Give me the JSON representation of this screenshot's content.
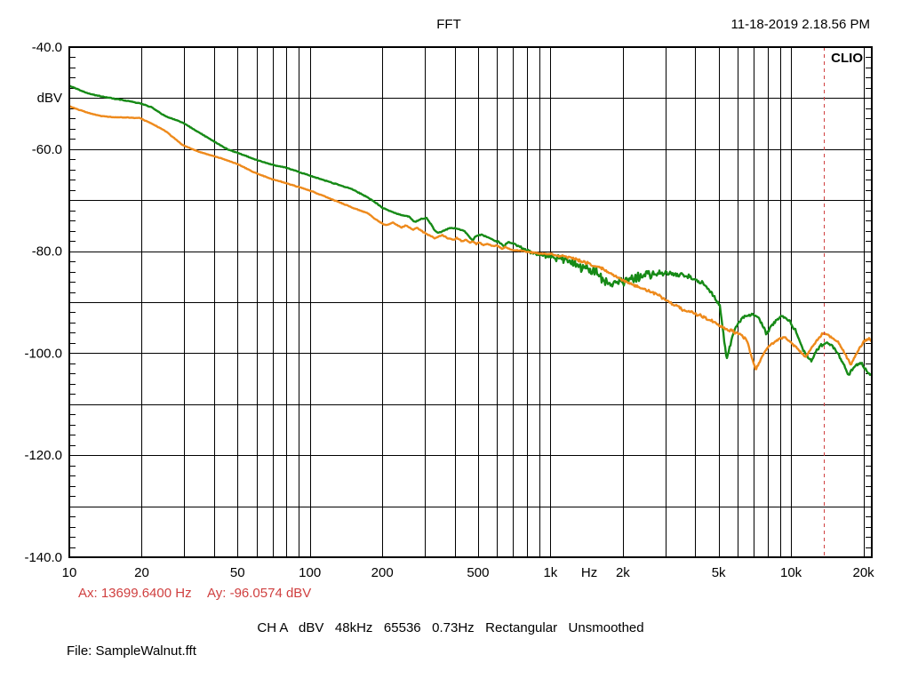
{
  "header": {
    "title": "FFT",
    "datetime": "11-18-2019 2.18.56 PM"
  },
  "brand": "CLIO",
  "axes": {
    "y_unit": "dBV",
    "y_labels": [
      {
        "db": -40,
        "label": "-40.0"
      },
      {
        "db": -60,
        "label": "-60.0"
      },
      {
        "db": -80,
        "label": "-80.0"
      },
      {
        "db": -100,
        "label": "-100.0"
      },
      {
        "db": -120,
        "label": "-120.0"
      },
      {
        "db": -140,
        "label": "-140.0"
      }
    ],
    "x_labels": [
      {
        "f": 10,
        "label": "10"
      },
      {
        "f": 20,
        "label": "20"
      },
      {
        "f": 50,
        "label": "50"
      },
      {
        "f": 100,
        "label": "100"
      },
      {
        "f": 200,
        "label": "200"
      },
      {
        "f": 500,
        "label": "500"
      },
      {
        "f": 1000,
        "label": "1k"
      },
      {
        "f": 2000,
        "label": "2k"
      },
      {
        "f": 5000,
        "label": "5k"
      },
      {
        "f": 10000,
        "label": "10k"
      },
      {
        "f": 20000,
        "label": "20k"
      }
    ],
    "x_unit": {
      "label": "Hz",
      "f": 1450
    }
  },
  "cursor": {
    "ax_text": "Ax: 13699.6400 Hz",
    "ay_text": "Ay: -96.0574 dBV",
    "freq_hz": 13699.64,
    "value_dbv": -96.0574,
    "color": "#d04040"
  },
  "settings_line": "CH A   dBV   48kHz   65536   0.73Hz   Rectangular   Unsmoothed",
  "file_line": "File: SampleWalnut.fft",
  "chart_data": {
    "type": "line",
    "title": "FFT",
    "xlabel": "Hz",
    "ylabel": "dBV",
    "x_scale": "log",
    "xlim": [
      10,
      21670
    ],
    "ylim": [
      -140,
      -40
    ],
    "grid": {
      "y_major_db": 10,
      "y_label_db": 20,
      "y_minor_tick_db": 2,
      "x_log_decades": true
    },
    "legend": "none",
    "series": [
      {
        "name": "channel-a-green",
        "color": "#168a16",
        "points": [
          [
            10,
            -47.6
          ],
          [
            12,
            -49.1
          ],
          [
            14,
            -49.8
          ],
          [
            16.3,
            -50.3
          ],
          [
            19.6,
            -51.0
          ],
          [
            22,
            -51.8
          ],
          [
            25,
            -53.5
          ],
          [
            29.6,
            -54.8
          ],
          [
            35,
            -56.9
          ],
          [
            39.4,
            -58.3
          ],
          [
            42.6,
            -59.3
          ],
          [
            45.3,
            -60.0
          ],
          [
            49.3,
            -60.6
          ],
          [
            59,
            -62.0
          ],
          [
            68.7,
            -63.0
          ],
          [
            78.8,
            -63.6
          ],
          [
            88,
            -64.3
          ],
          [
            98.5,
            -65.1
          ],
          [
            120,
            -66.4
          ],
          [
            149,
            -67.8
          ],
          [
            170,
            -69.2
          ],
          [
            184,
            -70.2
          ],
          [
            200,
            -71.5
          ],
          [
            215,
            -72.1
          ],
          [
            230,
            -72.7
          ],
          [
            245,
            -73.0
          ],
          [
            258,
            -73.2
          ],
          [
            272,
            -74.3
          ],
          [
            290,
            -73.7
          ],
          [
            305,
            -73.5
          ],
          [
            318,
            -74.6
          ],
          [
            330,
            -75.9
          ],
          [
            342,
            -76.5
          ],
          [
            355,
            -76.1
          ],
          [
            370,
            -75.7
          ],
          [
            385,
            -75.5
          ],
          [
            400,
            -75.5
          ],
          [
            418,
            -75.7
          ],
          [
            436,
            -76.0
          ],
          [
            452,
            -76.7
          ],
          [
            465,
            -77.4
          ],
          [
            475,
            -77.9
          ],
          [
            487,
            -77.2
          ],
          [
            500,
            -76.9
          ],
          [
            515,
            -76.8
          ],
          [
            532,
            -77.0
          ],
          [
            550,
            -77.3
          ],
          [
            568,
            -77.6
          ],
          [
            592,
            -78.0
          ],
          [
            612,
            -78.2
          ],
          [
            630,
            -78.7
          ],
          [
            642,
            -79.2
          ],
          [
            655,
            -78.5
          ],
          [
            670,
            -78.2
          ],
          [
            685,
            -78.3
          ],
          [
            705,
            -78.5
          ],
          [
            735,
            -79.0
          ],
          [
            760,
            -79.4
          ],
          [
            775,
            -79.6
          ],
          [
            805,
            -80.0
          ],
          [
            855,
            -80.5
          ],
          [
            905,
            -80.8
          ],
          [
            1000,
            -81.1
          ],
          [
            1150,
            -81.7
          ],
          [
            1300,
            -82.6
          ],
          [
            1410,
            -83.4
          ],
          [
            1550,
            -84.3
          ],
          [
            1670,
            -85.4
          ],
          [
            1800,
            -86.3
          ],
          [
            1980,
            -86.0
          ],
          [
            2200,
            -85.2
          ],
          [
            2500,
            -84.6
          ],
          [
            3000,
            -84.3
          ],
          [
            3400,
            -84.5
          ],
          [
            3900,
            -85.2
          ],
          [
            4300,
            -86.3
          ],
          [
            4650,
            -88.0
          ],
          [
            5060,
            -90.8
          ],
          [
            5400,
            -101.2
          ],
          [
            5800,
            -95.5
          ],
          [
            6300,
            -93.0
          ],
          [
            6900,
            -92.4
          ],
          [
            7400,
            -93.2
          ],
          [
            7900,
            -96.2
          ],
          [
            8500,
            -93.9
          ],
          [
            9200,
            -92.7
          ],
          [
            9800,
            -93.6
          ],
          [
            10450,
            -95.6
          ],
          [
            11200,
            -99.2
          ],
          [
            12100,
            -101.6
          ],
          [
            12700,
            -99.7
          ],
          [
            13100,
            -98.7
          ],
          [
            14000,
            -98.0
          ],
          [
            14800,
            -98.4
          ],
          [
            15900,
            -100.6
          ],
          [
            16700,
            -102.6
          ],
          [
            17350,
            -104.4
          ],
          [
            18100,
            -102.9
          ],
          [
            18600,
            -102.5
          ],
          [
            19300,
            -102.1
          ],
          [
            19800,
            -102.2
          ],
          [
            20500,
            -103.3
          ],
          [
            21100,
            -103.9
          ],
          [
            21670,
            -104.5
          ]
        ]
      },
      {
        "name": "channel-a-orange",
        "color": "#ee8a1c",
        "points": [
          [
            10,
            -51.6
          ],
          [
            11,
            -52.3
          ],
          [
            12.2,
            -53.0
          ],
          [
            13.5,
            -53.5
          ],
          [
            15,
            -53.7
          ],
          [
            17,
            -53.8
          ],
          [
            19.6,
            -53.9
          ],
          [
            22,
            -55.0
          ],
          [
            25,
            -56.4
          ],
          [
            29.6,
            -59.2
          ],
          [
            32.5,
            -60.0
          ],
          [
            35,
            -60.6
          ],
          [
            39.4,
            -61.3
          ],
          [
            44,
            -62.0
          ],
          [
            49.3,
            -62.8
          ],
          [
            59,
            -64.6
          ],
          [
            68.7,
            -65.8
          ],
          [
            78.8,
            -66.6
          ],
          [
            88,
            -67.3
          ],
          [
            98.5,
            -68.0
          ],
          [
            120,
            -69.6
          ],
          [
            149,
            -71.4
          ],
          [
            175,
            -72.6
          ],
          [
            184,
            -73.5
          ],
          [
            200,
            -74.6
          ],
          [
            208,
            -74.9
          ],
          [
            222,
            -74.4
          ],
          [
            240,
            -75.4
          ],
          [
            250,
            -74.9
          ],
          [
            268,
            -75.8
          ],
          [
            279,
            -75.4
          ],
          [
            295,
            -76.2
          ],
          [
            302,
            -76.5
          ],
          [
            318,
            -77.0
          ],
          [
            330,
            -77.5
          ],
          [
            344,
            -77.0
          ],
          [
            357,
            -76.9
          ],
          [
            372,
            -77.4
          ],
          [
            395,
            -77.8
          ],
          [
            408,
            -77.4
          ],
          [
            430,
            -78.1
          ],
          [
            444,
            -77.8
          ],
          [
            465,
            -78.3
          ],
          [
            480,
            -78.1
          ],
          [
            492,
            -78.6
          ],
          [
            505,
            -78.3
          ],
          [
            528,
            -78.8
          ],
          [
            548,
            -78.6
          ],
          [
            575,
            -79.1
          ],
          [
            600,
            -78.9
          ],
          [
            630,
            -79.5
          ],
          [
            648,
            -79.2
          ],
          [
            680,
            -79.6
          ],
          [
            705,
            -79.8
          ],
          [
            750,
            -79.9
          ],
          [
            790,
            -80.1
          ],
          [
            880,
            -80.4
          ],
          [
            1000,
            -80.6
          ],
          [
            1150,
            -81.1
          ],
          [
            1300,
            -81.7
          ],
          [
            1410,
            -82.3
          ],
          [
            1670,
            -83.6
          ],
          [
            1980,
            -85.7
          ],
          [
            2350,
            -87.1
          ],
          [
            2780,
            -88.5
          ],
          [
            3170,
            -90.2
          ],
          [
            3600,
            -91.6
          ],
          [
            4090,
            -92.4
          ],
          [
            4650,
            -93.6
          ],
          [
            5280,
            -95.1
          ],
          [
            6000,
            -96.1
          ],
          [
            6540,
            -97.3
          ],
          [
            7130,
            -103.3
          ],
          [
            7760,
            -99.7
          ],
          [
            8240,
            -98.3
          ],
          [
            9030,
            -97.0
          ],
          [
            9520,
            -97.1
          ],
          [
            10370,
            -98.6
          ],
          [
            11480,
            -100.8
          ],
          [
            12300,
            -98.6
          ],
          [
            13440,
            -96.3
          ],
          [
            13700,
            -96.1
          ],
          [
            14260,
            -96.4
          ],
          [
            15730,
            -97.9
          ],
          [
            16690,
            -99.9
          ],
          [
            17700,
            -102.3
          ],
          [
            18940,
            -99.5
          ],
          [
            20270,
            -97.5
          ],
          [
            21140,
            -97.2
          ],
          [
            21670,
            -97.7
          ]
        ]
      }
    ],
    "cursor": {
      "freq_hz": 13699.64,
      "value_dbv": -96.0574
    }
  }
}
